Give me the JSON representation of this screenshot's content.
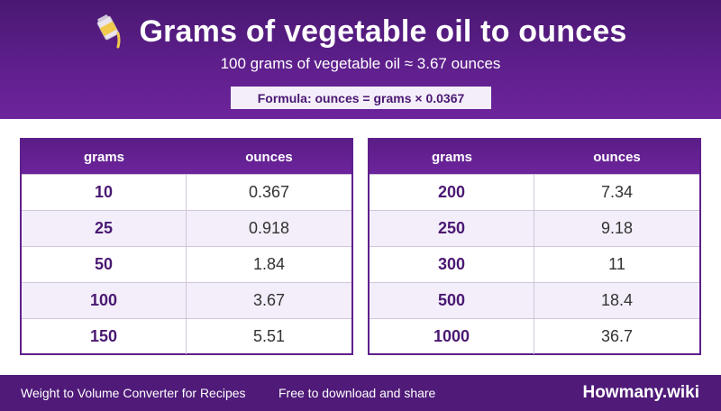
{
  "header": {
    "title": "Grams of vegetable oil to ounces",
    "subtitle": "100 grams of vegetable oil ≈ 3.67 ounces",
    "formula": "Formula: ounces = grams × 0.0367",
    "icon": "oil-pouring-icon"
  },
  "tables": {
    "left": {
      "headers": [
        "grams",
        "ounces"
      ],
      "rows": [
        {
          "grams": "10",
          "ounces": "0.367"
        },
        {
          "grams": "25",
          "ounces": "0.918"
        },
        {
          "grams": "50",
          "ounces": "1.84"
        },
        {
          "grams": "100",
          "ounces": "3.67"
        },
        {
          "grams": "150",
          "ounces": "5.51"
        }
      ]
    },
    "right": {
      "headers": [
        "grams",
        "ounces"
      ],
      "rows": [
        {
          "grams": "200",
          "ounces": "7.34"
        },
        {
          "grams": "250",
          "ounces": "9.18"
        },
        {
          "grams": "300",
          "ounces": "11"
        },
        {
          "grams": "500",
          "ounces": "18.4"
        },
        {
          "grams": "1000",
          "ounces": "36.7"
        }
      ]
    }
  },
  "footer": {
    "left": "Weight to Volume Converter for Recipes",
    "middle": "Free to download and share",
    "brand": "Howmany.wiki"
  },
  "colors": {
    "header_bg": "#5e1f8c",
    "accent_text": "#4a1872",
    "alt_row": "#f3eef9",
    "footer_bg": "#4f1a78"
  }
}
